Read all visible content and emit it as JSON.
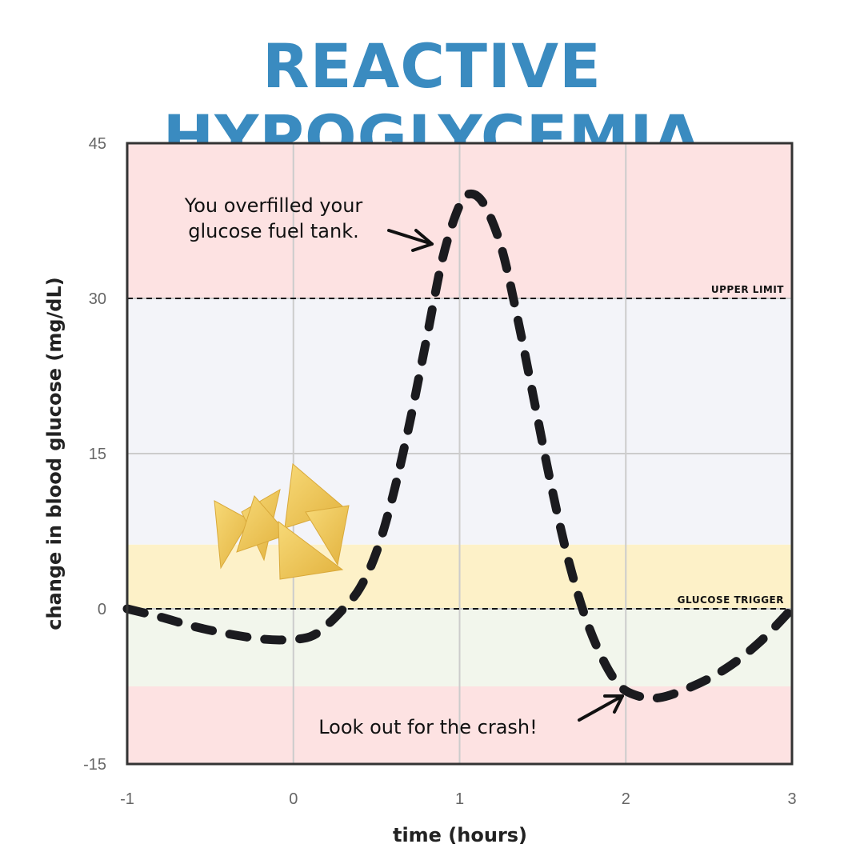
{
  "title": "REACTIVE HYPOGLYCEMIA",
  "colors": {
    "title": "#3a8bc0",
    "zone_red": "#fde2e2",
    "zone_blue": "#f3f4f9",
    "zone_yellow": "#fdf1c8",
    "zone_green": "#f2f6ec",
    "curve": "#1b1b1f",
    "grid": "#cccccc",
    "frame": "#333333"
  },
  "chart_data": {
    "type": "line",
    "xlabel": "time (hours)",
    "ylabel": "change in blood glucose (mg/dL)",
    "xlim": [
      -1,
      3
    ],
    "ylim": [
      -15,
      45
    ],
    "x_ticks": [
      -1,
      0,
      1,
      2,
      3
    ],
    "y_ticks": [
      -15,
      0,
      15,
      30,
      45
    ],
    "x_tick_labels": [
      "-1",
      "0",
      "1",
      "2",
      "3"
    ],
    "y_tick_labels": [
      "-15",
      "0",
      "15",
      "30",
      "45"
    ],
    "grid": true,
    "zones": [
      {
        "from": 30,
        "to": 45,
        "color": "zone_red"
      },
      {
        "from": 6.2,
        "to": 30,
        "color": "zone_blue"
      },
      {
        "from": 0,
        "to": 6.2,
        "color": "zone_yellow"
      },
      {
        "from": -7.5,
        "to": 0,
        "color": "zone_green"
      },
      {
        "from": -15,
        "to": -7.5,
        "color": "zone_red"
      }
    ],
    "reference_lines": [
      {
        "y": 30,
        "label": "UPPER LIMIT"
      },
      {
        "y": 0,
        "label": "GLUCOSE TRIGGER"
      }
    ],
    "series": [
      {
        "style": "dashed",
        "points": [
          [
            -1.0,
            0.0
          ],
          [
            -0.8,
            -0.8
          ],
          [
            -0.6,
            -1.7
          ],
          [
            -0.4,
            -2.4
          ],
          [
            -0.2,
            -2.9
          ],
          [
            -0.05,
            -3.0
          ],
          [
            0.1,
            -2.7
          ],
          [
            0.2,
            -1.6
          ],
          [
            0.3,
            0.0
          ],
          [
            0.4,
            2.0
          ],
          [
            0.5,
            5.5
          ],
          [
            0.6,
            11.0
          ],
          [
            0.7,
            18.0
          ],
          [
            0.8,
            26.0
          ],
          [
            0.9,
            34.0
          ],
          [
            1.0,
            39.0
          ],
          [
            1.07,
            40.1
          ],
          [
            1.15,
            39.0
          ],
          [
            1.25,
            35.0
          ],
          [
            1.35,
            28.0
          ],
          [
            1.45,
            20.0
          ],
          [
            1.55,
            12.0
          ],
          [
            1.65,
            5.0
          ],
          [
            1.75,
            -0.5
          ],
          [
            1.85,
            -4.5
          ],
          [
            1.95,
            -7.2
          ],
          [
            2.05,
            -8.3
          ],
          [
            2.2,
            -8.6
          ],
          [
            2.4,
            -7.5
          ],
          [
            2.6,
            -5.8
          ],
          [
            2.8,
            -3.3
          ],
          [
            3.0,
            0.0
          ]
        ]
      }
    ],
    "annotations": [
      {
        "text_lines": [
          "You overfilled your",
          "glucose fuel tank."
        ],
        "x": 0.9,
        "y": 35
      },
      {
        "text_lines": [
          "Look out for the crash!"
        ],
        "x": 2.0,
        "y": -8
      }
    ]
  }
}
